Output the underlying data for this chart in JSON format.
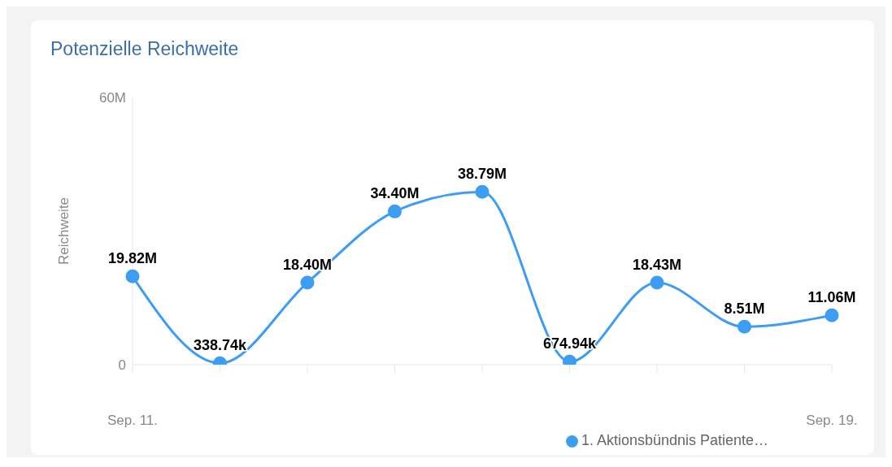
{
  "chart_data": {
    "type": "line",
    "title": "Potenzielle Reichweite",
    "ylabel": "Reichweite",
    "categories": [
      "Sep. 11.",
      null,
      null,
      null,
      null,
      null,
      null,
      null,
      "Sep. 19."
    ],
    "series": [
      {
        "name": "1. Aktionsbündnis Patiente…",
        "color": "#3d9df3",
        "values": [
          19820000,
          338740,
          18400000,
          34400000,
          38790000,
          674940,
          18430000,
          8510000,
          11060000
        ],
        "value_labels": [
          "19.82M",
          "338.74k",
          "18.40M",
          "34.40M",
          "38.79M",
          "674.94k",
          "18.43M",
          "8.51M",
          "11.06M"
        ]
      }
    ],
    "ylim": [
      0,
      60000000
    ],
    "yticks": [
      0,
      {
        "value": 60000000,
        "label": "60M"
      }
    ],
    "grid": false,
    "legend": "bottom",
    "marker": "circle",
    "line_style": "solid"
  }
}
